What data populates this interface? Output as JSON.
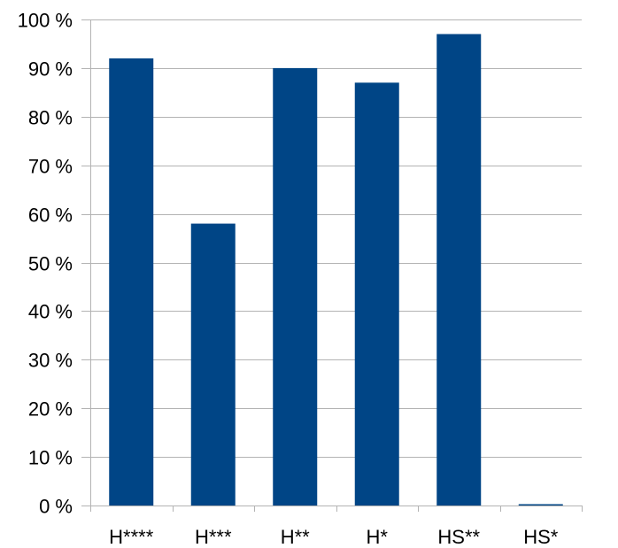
{
  "chart_data": {
    "type": "bar",
    "categories": [
      "H****",
      "H***",
      "H**",
      "H*",
      "HS**",
      "HS*"
    ],
    "series": [
      {
        "values": [
          92,
          58,
          90,
          87,
          97,
          0
        ],
        "color": "#004586"
      }
    ],
    "ylim": [
      0,
      100
    ],
    "yticks": [
      0,
      10,
      20,
      30,
      40,
      50,
      60,
      70,
      80,
      90,
      100
    ],
    "ytick_labels": [
      "0 %",
      "10 %",
      "20 %",
      "30 %",
      "40 %",
      "50 %",
      "60 %",
      "70 %",
      "80 %",
      "90 %",
      "100 %"
    ],
    "grid": true,
    "legend": "none"
  }
}
